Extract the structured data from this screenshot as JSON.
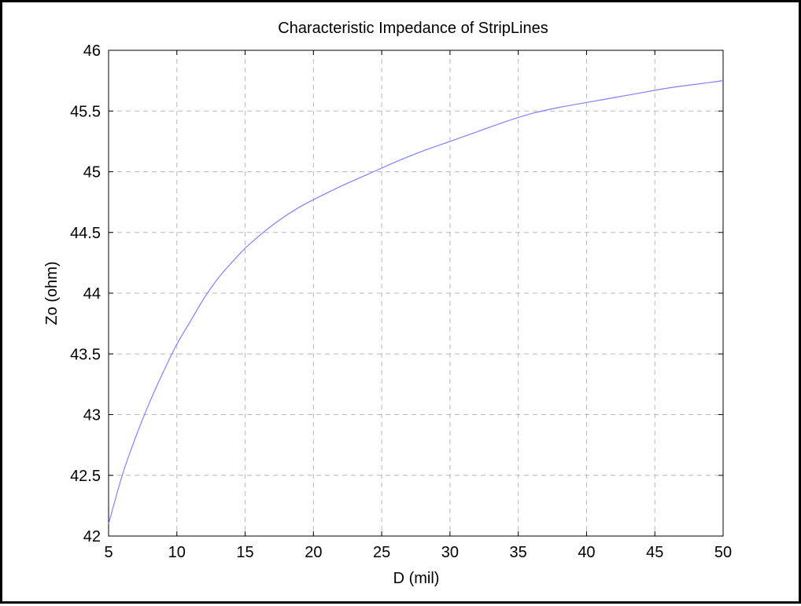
{
  "chart_data": {
    "type": "line",
    "title": "Characteristic Impedance of StripLines",
    "xlabel": "D (mil)",
    "ylabel": "Zo (ohm)",
    "xlim": [
      5,
      50
    ],
    "ylim": [
      42,
      46
    ],
    "xticks": [
      5,
      10,
      15,
      20,
      25,
      30,
      35,
      40,
      45,
      50
    ],
    "yticks": [
      42,
      42.5,
      43,
      43.5,
      44,
      44.5,
      45,
      45.5,
      46
    ],
    "xtick_labels": [
      "5",
      "10",
      "15",
      "20",
      "25",
      "30",
      "35",
      "40",
      "45",
      "50"
    ],
    "ytick_labels": [
      "42",
      "42.5",
      "43",
      "43.5",
      "44",
      "44.5",
      "45",
      "45.5",
      "46"
    ],
    "grid": true,
    "line_color": "#8080ff",
    "series": [
      {
        "x": [
          5,
          6,
          7,
          8,
          9,
          10,
          11,
          12,
          13,
          14,
          15,
          16,
          17,
          18,
          19,
          20,
          22,
          24,
          26,
          28,
          30,
          32,
          34,
          36,
          38,
          40,
          42,
          44,
          46,
          48,
          50
        ],
        "values": [
          42.1,
          42.5,
          42.82,
          43.1,
          43.35,
          43.58,
          43.77,
          43.96,
          44.12,
          44.25,
          44.37,
          44.47,
          44.56,
          44.64,
          44.71,
          44.77,
          44.88,
          44.98,
          45.08,
          45.17,
          45.25,
          45.33,
          45.41,
          45.48,
          45.53,
          45.57,
          45.61,
          45.65,
          45.69,
          45.72,
          45.75
        ]
      }
    ]
  }
}
